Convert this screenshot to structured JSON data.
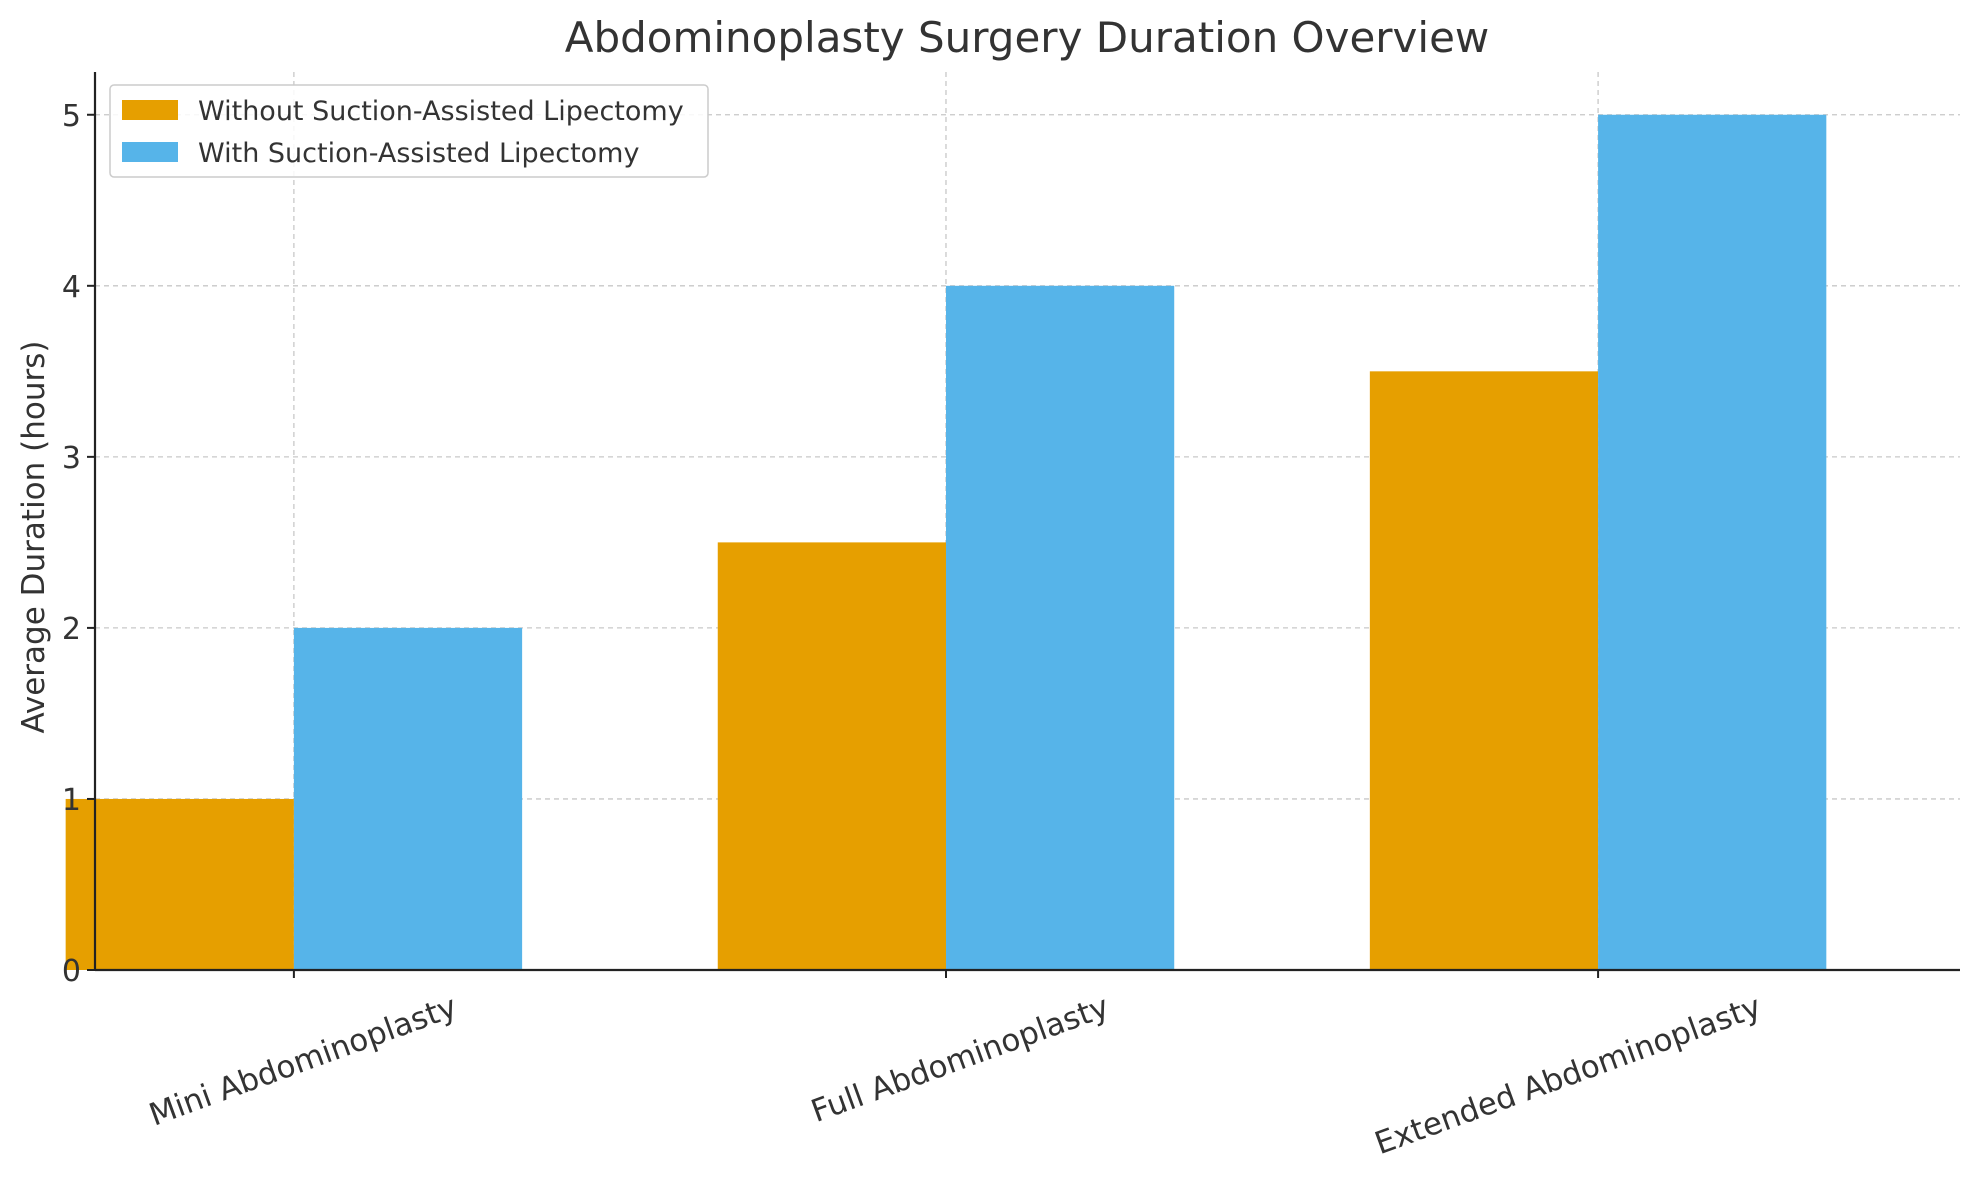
{
  "chart_data": {
    "type": "bar",
    "title": "Abdominoplasty Surgery Duration Overview",
    "xlabel": "",
    "ylabel": "Average Duration (hours)",
    "categories": [
      "Mini Abdominoplasty",
      "Full Abdominoplasty",
      "Extended Abdominoplasty"
    ],
    "series": [
      {
        "name": "Without Suction-Assisted Lipectomy",
        "values": [
          1,
          2.5,
          3.5
        ],
        "color": "#E69F00"
      },
      {
        "name": "With Suction-Assisted Lipectomy",
        "values": [
          2,
          4,
          5
        ],
        "color": "#56B4E9"
      }
    ],
    "ylim": [
      0,
      5.25
    ],
    "yticks": [
      0,
      1,
      2,
      3,
      4,
      5
    ],
    "grid": true,
    "legend_position": "top-left"
  }
}
